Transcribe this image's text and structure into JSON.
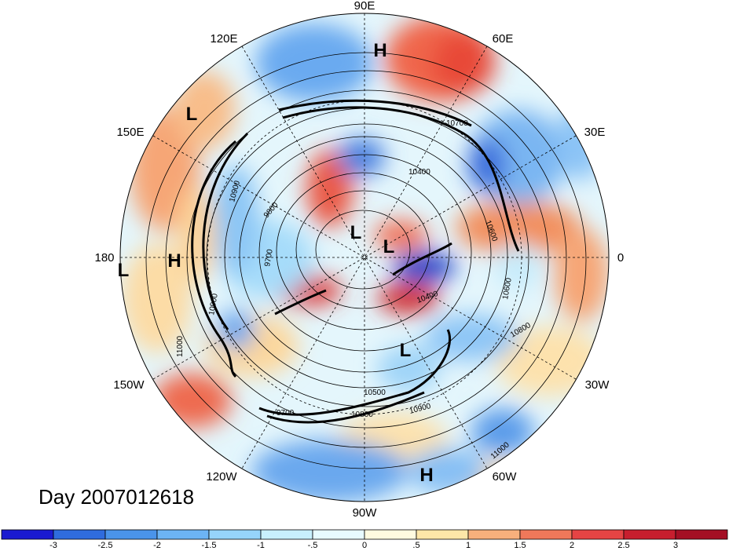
{
  "title": "Day 2007012618",
  "longitude_labels": {
    "e90": "90E",
    "e60": "60E",
    "e30": "30E",
    "zero": "0",
    "w30": "30W",
    "w60": "60W",
    "w90": "90W",
    "w120": "120W",
    "w150": "150W",
    "d180": "180",
    "e150": "150E",
    "e120": "120E"
  },
  "pressure_centers": {
    "h_top": "H",
    "h_left": "H",
    "h_bottom": "H",
    "l_left": "L",
    "l_center": "L",
    "l_center2": "L",
    "l_edge": "L",
    "l_small": "L"
  },
  "contour_labels": {
    "c1": "10700",
    "c2": "10400",
    "c3": "10600",
    "c4": "10400",
    "c5": "10600",
    "c6": "10800",
    "c7": "9800",
    "c8": "9700",
    "c9": "10900",
    "c10": "11000",
    "c11": "10500",
    "c12": "10800",
    "c13": "10900",
    "c14": "9700",
    "c15": "11000",
    "c16": "10900"
  },
  "colorbar": {
    "ticks": [
      "-3",
      "-2.5",
      "-2",
      "-1.5",
      "-1",
      "-.5",
      "0",
      ".5",
      "1",
      "1.5",
      "2",
      "2.5",
      "3"
    ],
    "colors": [
      "#1a1ad0",
      "#2f6cde",
      "#4a94ea",
      "#6cb4f4",
      "#96d4fb",
      "#c8f0fd",
      "#e8fbff",
      "#fffbe0",
      "#fde6a8",
      "#f7b07c",
      "#f0785a",
      "#e54444",
      "#c71e2e",
      "#a40f24"
    ]
  }
}
